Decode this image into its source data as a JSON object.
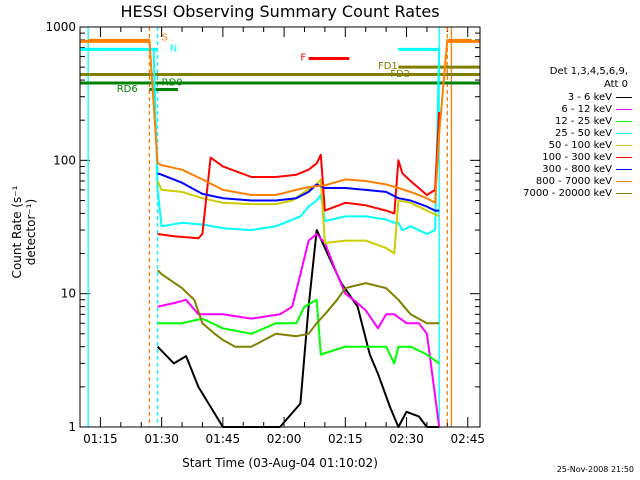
{
  "chart_data": {
    "type": "line",
    "title": "HESSI Observing Summary Count Rates",
    "xlabel": "Start Time (03-Aug-04 01:10:02)",
    "ylabel": "Count Rate (s⁻¹ detector⁻¹)",
    "yscale": "log",
    "ylim": [
      1,
      1000
    ],
    "xlim": [
      "01:10",
      "02:48"
    ],
    "x_ticks": [
      "01:15",
      "01:30",
      "01:45",
      "02:00",
      "02:15",
      "02:30",
      "02:45"
    ],
    "y_ticks": [
      "1",
      "10",
      "100",
      "1000"
    ],
    "legend_title": [
      "Det 1,3,4,5,6,9,",
      "Att 0"
    ],
    "legend_position": "right",
    "series": [
      {
        "name": "3 - 6 keV",
        "color": "#000000",
        "x": [
          "01:29",
          "01:33",
          "01:36",
          "01:39",
          "01:45",
          "01:52",
          "01:59",
          "02:04",
          "02:06",
          "02:08",
          "02:10",
          "02:14",
          "02:18",
          "02:21",
          "02:23",
          "02:26",
          "02:28",
          "02:30",
          "02:33",
          "02:35",
          "02:38"
        ],
        "y": [
          4,
          3,
          3.4,
          2,
          1,
          1,
          1,
          1.5,
          8,
          30,
          22,
          12,
          8,
          3.5,
          2.5,
          1.4,
          1,
          1.3,
          1.2,
          1,
          1
        ]
      },
      {
        "name": "6 - 12 keV",
        "color": "#ff00ff",
        "x": [
          "01:29",
          "01:33",
          "01:36",
          "01:39",
          "01:45",
          "01:52",
          "01:59",
          "02:02",
          "02:04",
          "02:06",
          "02:08",
          "02:10",
          "02:13",
          "02:15",
          "02:17",
          "02:20",
          "02:23",
          "02:25",
          "02:27",
          "02:30",
          "02:33",
          "02:35",
          "02:38"
        ],
        "y": [
          8,
          8.5,
          9,
          7,
          7,
          6.5,
          7,
          8,
          14,
          25,
          28,
          24,
          14,
          10,
          9,
          7.5,
          5.5,
          7,
          7,
          6,
          6,
          5,
          1
        ]
      },
      {
        "name": "12 - 25 keV",
        "color": "#00ff00",
        "x": [
          "01:29",
          "01:35",
          "01:40",
          "01:45",
          "01:52",
          "01:58",
          "02:03",
          "02:05",
          "02:08",
          "02:09",
          "02:15",
          "02:20",
          "02:25",
          "02:27",
          "02:28",
          "02:31",
          "02:35",
          "02:38"
        ],
        "y": [
          6,
          6,
          6.5,
          5.5,
          5,
          6,
          6,
          8,
          9,
          3.5,
          4,
          4,
          4,
          3,
          4,
          4,
          3.5,
          3
        ]
      },
      {
        "name": "25 - 50 keV",
        "color": "#00ffff",
        "x": [
          "01:28",
          "01:29",
          "01:30",
          "01:35",
          "01:40",
          "01:45",
          "01:52",
          "01:58",
          "02:04",
          "02:06",
          "02:08",
          "02:09",
          "02:10",
          "02:15",
          "02:20",
          "02:25",
          "02:27",
          "02:28",
          "02:29",
          "02:31",
          "02:35",
          "02:37",
          "02:38"
        ],
        "y": [
          700,
          60,
          32,
          34,
          33,
          31,
          30,
          32,
          38,
          45,
          50,
          55,
          35,
          38,
          38,
          36,
          34,
          34,
          30,
          32,
          28,
          30,
          700
        ]
      },
      {
        "name": "50 - 100 keV",
        "color": "#cccc00",
        "x": [
          "01:29",
          "01:30",
          "01:35",
          "01:40",
          "01:45",
          "01:52",
          "01:58",
          "02:02",
          "02:05",
          "02:08",
          "02:09",
          "02:10",
          "02:15",
          "02:20",
          "02:25",
          "02:27",
          "02:28",
          "02:31",
          "02:35",
          "02:38"
        ],
        "y": [
          70,
          60,
          58,
          52,
          48,
          47,
          47,
          50,
          58,
          66,
          72,
          24,
          25,
          25,
          22,
          20,
          50,
          48,
          42,
          38
        ]
      },
      {
        "name": "100 - 300 keV",
        "color": "#ff0000",
        "x": [
          "01:29",
          "01:33",
          "01:39",
          "01:40",
          "01:42",
          "01:45",
          "01:52",
          "01:58",
          "02:03",
          "02:06",
          "02:08",
          "02:09",
          "02:10",
          "02:15",
          "02:20",
          "02:25",
          "02:27",
          "02:28",
          "02:29",
          "02:31",
          "02:35",
          "02:37",
          "02:38"
        ],
        "y": [
          28,
          27,
          26,
          28,
          105,
          90,
          75,
          75,
          78,
          85,
          95,
          110,
          42,
          48,
          46,
          42,
          40,
          100,
          80,
          70,
          55,
          60,
          230
        ]
      },
      {
        "name": "300 - 800 keV",
        "color": "#0000ff",
        "x": [
          "01:29",
          "01:30",
          "01:35",
          "01:40",
          "01:45",
          "01:52",
          "01:58",
          "02:03",
          "02:06",
          "02:08",
          "02:10",
          "02:15",
          "02:20",
          "02:25",
          "02:28",
          "02:31",
          "02:35",
          "02:37",
          "02:38"
        ],
        "y": [
          80,
          78,
          68,
          56,
          52,
          50,
          50,
          52,
          58,
          66,
          62,
          62,
          60,
          58,
          52,
          50,
          45,
          42,
          42
        ]
      },
      {
        "name": "800 - 7000 keV",
        "color": "#ff8000",
        "x": [
          "01:12",
          "01:27",
          "01:29",
          "01:30",
          "01:35",
          "01:40",
          "01:45",
          "01:52",
          "01:58",
          "02:03",
          "02:06",
          "02:10",
          "02:15",
          "02:20",
          "02:25",
          "02:28",
          "02:31",
          "02:35",
          "02:37",
          "02:38",
          "02:40",
          "02:46"
        ],
        "y": [
          800,
          800,
          95,
          92,
          85,
          72,
          60,
          55,
          55,
          60,
          63,
          65,
          72,
          70,
          66,
          62,
          58,
          52,
          48,
          160,
          800,
          800
        ]
      },
      {
        "name": "7000 - 20000 keV",
        "color": "#808000",
        "x": [
          "01:29",
          "01:30",
          "01:35",
          "01:38",
          "01:40",
          "01:43",
          "01:45",
          "01:48",
          "01:52",
          "01:58",
          "02:03",
          "02:06",
          "02:08",
          "02:10",
          "02:13",
          "02:15",
          "02:20",
          "02:25",
          "02:28",
          "02:31",
          "02:35",
          "02:37",
          "02:38"
        ],
        "y": [
          15,
          14,
          11,
          9,
          6,
          5,
          4.5,
          4,
          4,
          5,
          4.8,
          5,
          6,
          7,
          9,
          11,
          12,
          11,
          9,
          7,
          6,
          6,
          6
        ]
      }
    ],
    "annotations": [
      {
        "text": "S",
        "color": "#ff8000"
      },
      {
        "text": "N",
        "color": "#00ffff"
      },
      {
        "text": "F",
        "color": "#ff0000"
      },
      {
        "text": "FD1",
        "color": "#808000"
      },
      {
        "text": "FD2",
        "color": "#808000"
      },
      {
        "text": "RD0",
        "color": "#008000"
      },
      {
        "text": "RD6",
        "color": "#008000"
      }
    ],
    "timestamp": "25-Nov-2008 21:50"
  }
}
